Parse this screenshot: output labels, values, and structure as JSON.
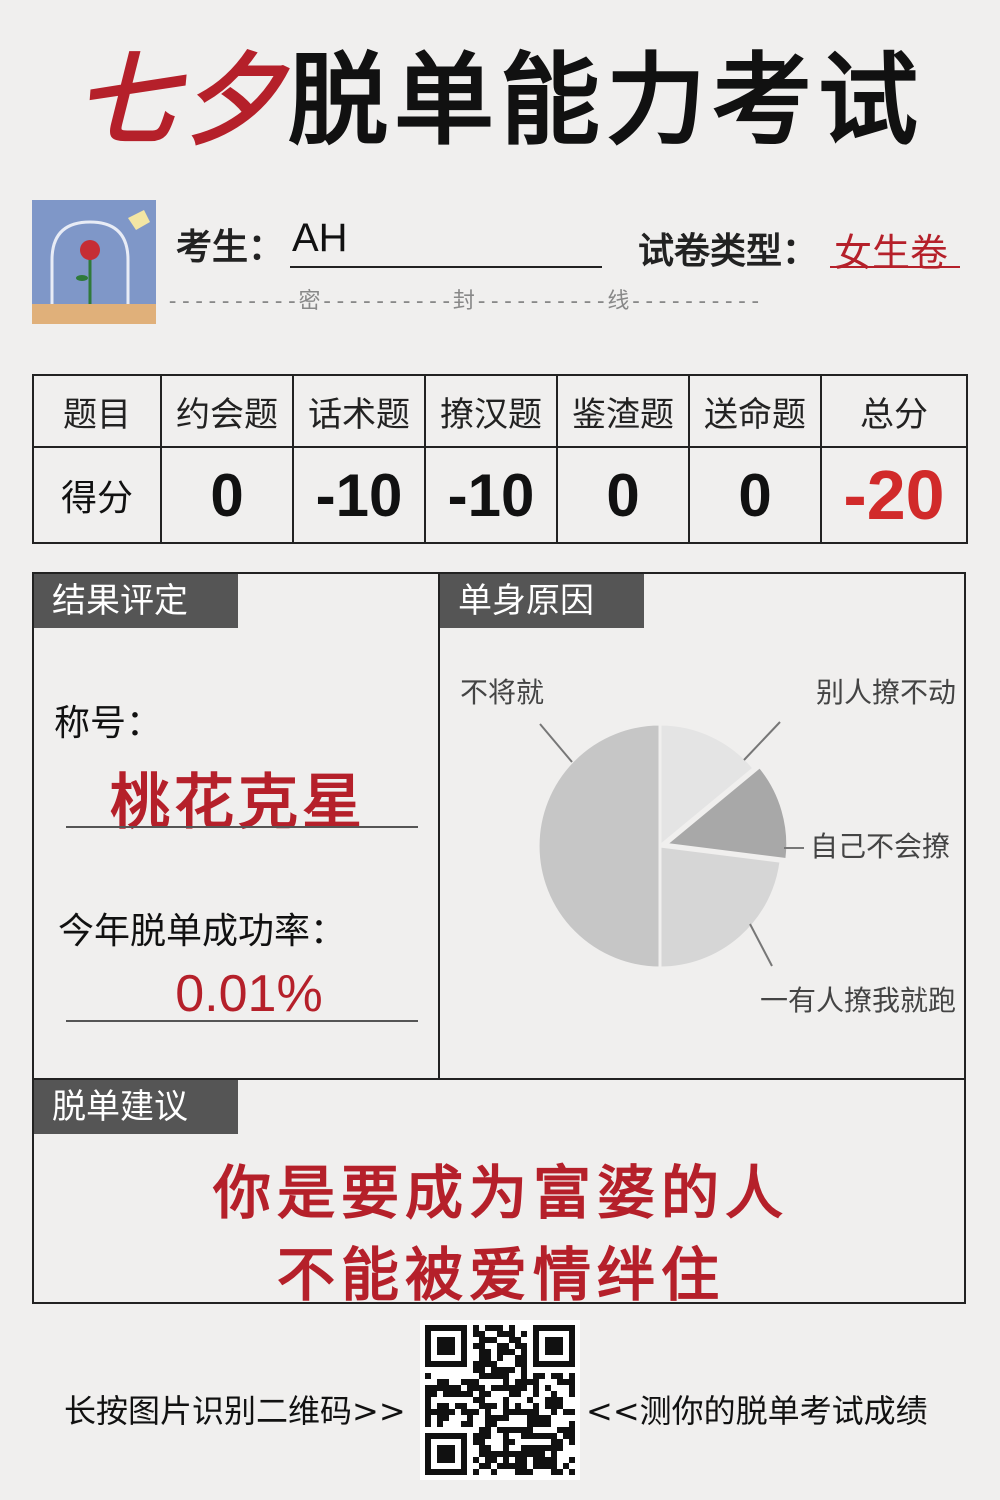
{
  "header": {
    "title_red": "七夕",
    "title_black": "脱单能力考试"
  },
  "examinee": {
    "label": "考生：",
    "value": "AH",
    "paper_type_label": "试卷类型：",
    "paper_type_value": "女生卷"
  },
  "seal_line": {
    "chars": [
      "密",
      "封",
      "线"
    ]
  },
  "score_table": {
    "row1_label": "题目",
    "row2_label": "得分",
    "columns": [
      "约会题",
      "话术题",
      "撩汉题",
      "鉴渣题",
      "送命题",
      "总分"
    ],
    "scores": [
      "0",
      "-10",
      "-10",
      "0",
      "0",
      "-20"
    ]
  },
  "result": {
    "tag": "结果评定",
    "title_label": "称号：",
    "title_value": "桃花克星",
    "rate_label": "今年脱单成功率：",
    "rate_value": "0.01%"
  },
  "reason": {
    "tag": "单身原因"
  },
  "chart_data": {
    "type": "pie",
    "labels": [
      "不将就",
      "别人撩不动",
      "自己不会撩",
      "一有人撩我就跑"
    ],
    "values": [
      50,
      14,
      13,
      23
    ],
    "colors": [
      "#c6c6c6",
      "#e4e4e4",
      "#a8a8a8",
      "#d6d6d6"
    ]
  },
  "advice": {
    "tag": "脱单建议",
    "line1": "你是要成为富婆的人",
    "line2": "不能被爱情绊住"
  },
  "footer": {
    "left": "长按图片识别二维码>>",
    "right": "<<测你的脱单考试成绩"
  }
}
